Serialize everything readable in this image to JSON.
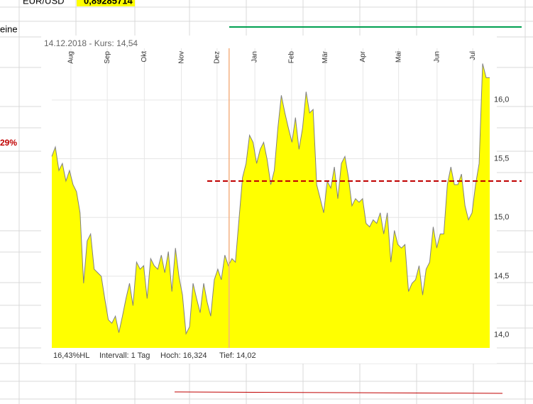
{
  "sheet": {
    "label": "EUR/USD",
    "rate": "0,89285714",
    "row_text": "eine",
    "percent": "29%"
  },
  "chart_data": {
    "type": "area",
    "header": "14.12.2018  -  Kurs: 14,54",
    "footer": [
      "16,43%HL",
      "Intervall: 1 Tag",
      "Hoch: 16,324",
      "Tief: 14,02"
    ],
    "color": "#ffff00",
    "line_color": "#808080",
    "values": [
      15.52,
      15.6,
      15.4,
      15.46,
      15.31,
      15.4,
      15.28,
      15.22,
      15.04,
      14.44,
      14.8,
      14.86,
      14.56,
      14.53,
      14.5,
      14.31,
      14.13,
      14.1,
      14.16,
      14.02,
      14.16,
      14.31,
      14.44,
      14.25,
      14.62,
      14.56,
      14.59,
      14.31,
      14.65,
      14.59,
      14.56,
      14.68,
      14.53,
      14.71,
      14.37,
      14.74,
      14.5,
      14.34,
      14.01,
      14.07,
      14.44,
      14.31,
      14.19,
      14.44,
      14.28,
      14.16,
      14.47,
      14.56,
      14.47,
      14.68,
      14.59,
      14.65,
      14.62,
      14.98,
      15.34,
      15.46,
      15.7,
      15.64,
      15.46,
      15.58,
      15.64,
      15.49,
      15.28,
      15.4,
      15.76,
      16.04,
      15.89,
      15.76,
      15.64,
      15.85,
      15.58,
      15.76,
      16.07,
      15.89,
      15.92,
      15.28,
      15.16,
      15.04,
      15.31,
      15.25,
      15.43,
      15.16,
      15.46,
      15.52,
      15.34,
      15.1,
      15.16,
      15.13,
      15.16,
      14.95,
      14.92,
      14.98,
      14.95,
      15.04,
      14.86,
      15.04,
      14.62,
      14.89,
      14.77,
      14.74,
      14.77,
      14.37,
      14.44,
      14.47,
      14.59,
      14.34,
      14.56,
      14.62,
      14.92,
      14.74,
      14.86,
      14.86,
      15.28,
      15.43,
      15.28,
      15.28,
      15.37,
      15.1,
      14.98,
      15.04,
      15.28,
      15.46,
      16.31,
      16.19,
      16.19
    ],
    "xlim": [
      0,
      124
    ],
    "xticks": [
      {
        "value": 5.4,
        "label": "Aug"
      },
      {
        "value": 15.7,
        "label": "Sep"
      },
      {
        "value": 26.2,
        "label": "Okt"
      },
      {
        "value": 36.7,
        "label": "Nov"
      },
      {
        "value": 46.8,
        "label": "Dez"
      },
      {
        "value": 57.5,
        "label": "Jan"
      },
      {
        "value": 67.9,
        "label": "Feb"
      },
      {
        "value": 77.4,
        "label": "Mär"
      },
      {
        "value": 88.1,
        "label": "Apr"
      },
      {
        "value": 98.2,
        "label": "Mai"
      },
      {
        "value": 109.1,
        "label": "Jun"
      },
      {
        "value": 119.2,
        "label": "Jul"
      }
    ],
    "ylim": [
      13.89,
      16.44
    ],
    "yticks": [
      {
        "value": 14,
        "label": "14,0"
      },
      {
        "value": 14.5,
        "label": "14,5"
      },
      {
        "value": 15,
        "label": "15,0"
      },
      {
        "value": 15.5,
        "label": "15,5"
      },
      {
        "value": 16,
        "label": "16,0"
      }
    ],
    "grid": true,
    "reference_line": 15.31,
    "reference_color": "#c00000",
    "cursor_x": 50.2,
    "cursor_color": "#f4b183"
  }
}
